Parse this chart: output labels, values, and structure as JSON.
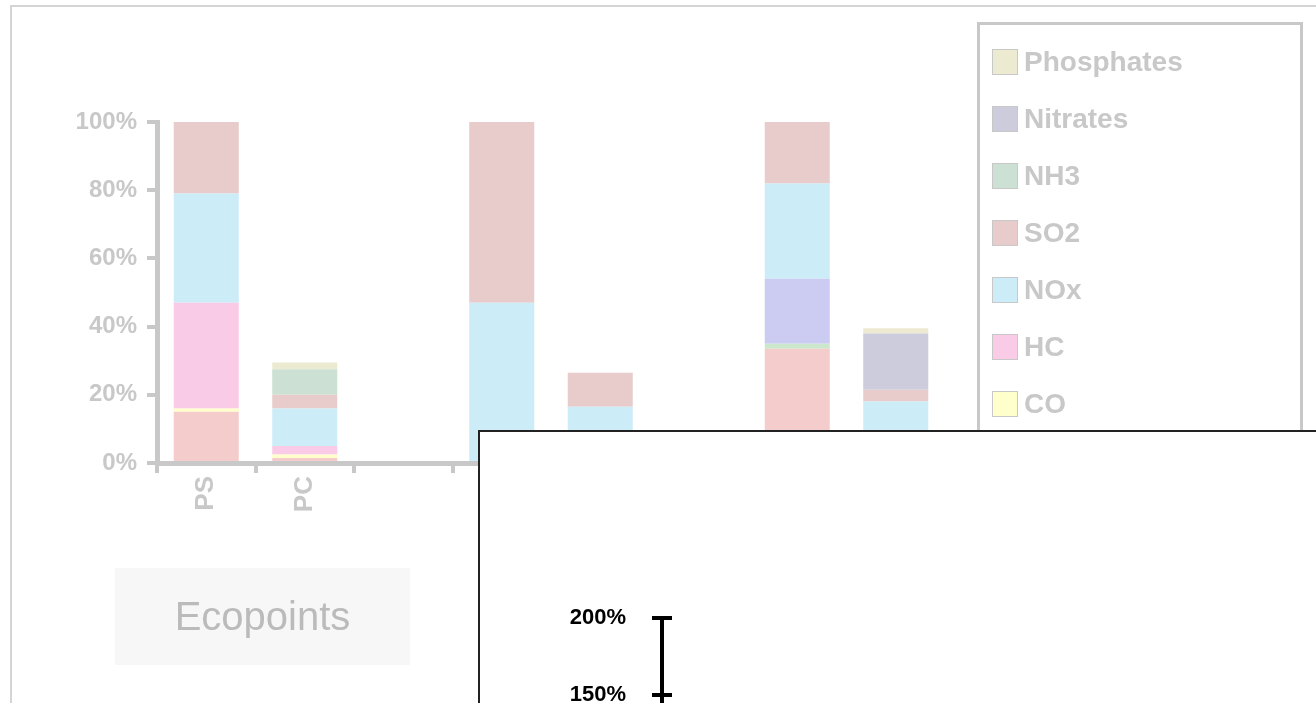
{
  "chart_data": [
    {
      "type": "bar",
      "stacked": true,
      "categories": [
        "PS",
        "PC",
        null,
        null,
        null,
        null,
        null,
        null
      ],
      "series": [
        {
          "color": "#f5cccc",
          "values": [
            15,
            1.5,
            null,
            null,
            null,
            null,
            33.5,
            null
          ]
        },
        {
          "color": "#cce8cc",
          "values": [
            null,
            null,
            null,
            null,
            null,
            null,
            1.5,
            null
          ]
        },
        {
          "color": "#ccccf2",
          "values": [
            null,
            null,
            null,
            null,
            null,
            null,
            19,
            null
          ]
        },
        {
          "name": "CO",
          "color": "#ffffcc",
          "values": [
            1,
            1,
            null,
            null,
            null,
            null,
            null,
            null
          ]
        },
        {
          "name": "HC",
          "color": "#facbe6",
          "values": [
            31,
            2.5,
            null,
            null,
            null,
            null,
            null,
            null
          ]
        },
        {
          "name": "NOx",
          "color": "#ccecf8",
          "values": [
            32,
            11,
            null,
            47,
            16.5,
            null,
            28,
            18
          ]
        },
        {
          "name": "SO2",
          "color": "#e8cccc",
          "values": [
            21,
            4,
            null,
            53,
            10,
            null,
            18,
            3.5
          ]
        },
        {
          "name": "NH3",
          "color": "#cce0d4",
          "values": [
            null,
            7.5,
            null,
            null,
            null,
            null,
            null,
            null
          ]
        },
        {
          "name": "Nitrates",
          "color": "#ccccdd",
          "values": [
            null,
            null,
            null,
            null,
            null,
            null,
            null,
            16.5
          ]
        },
        {
          "name": "Phosphates",
          "color": "#ecead0",
          "values": [
            null,
            2,
            null,
            null,
            null,
            null,
            null,
            1.5
          ]
        }
      ],
      "ylim": [
        0,
        100
      ],
      "yticks": [
        {
          "value": 0,
          "label": "0%"
        },
        {
          "value": 20,
          "label": "20%"
        },
        {
          "value": 40,
          "label": "40%"
        },
        {
          "value": 60,
          "label": "60%"
        },
        {
          "value": 80,
          "label": "80%"
        },
        {
          "value": 100,
          "label": "100%"
        }
      ],
      "legend": "top right",
      "annotations": [
        "Ecopoints"
      ]
    },
    {
      "type": "other",
      "annotations": [
        "200%",
        "150%"
      ]
    }
  ]
}
